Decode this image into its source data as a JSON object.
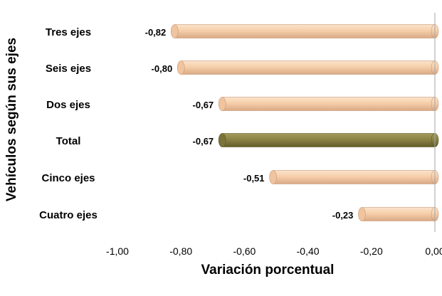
{
  "chart_data": {
    "type": "bar",
    "orientation": "horizontal",
    "title": "",
    "xlabel": "Variación porcentual",
    "ylabel": "Vehículos según sus ejes",
    "categories": [
      "Tres ejes",
      "Seis ejes",
      "Dos ejes",
      "Total",
      "Cinco ejes",
      "Cuatro ejes"
    ],
    "values": [
      -0.82,
      -0.8,
      -0.67,
      -0.67,
      -0.51,
      -0.23
    ],
    "value_labels": [
      "-0,82",
      "-0,80",
      "-0,67",
      "-0,67",
      "-0,51",
      "-0,23"
    ],
    "highlight_category": "Total",
    "xlim": [
      -1.0,
      0.0
    ],
    "x_ticks": [
      -1.0,
      -0.8,
      -0.6,
      -0.4,
      -0.2,
      0.0
    ],
    "x_tick_labels": [
      "-1,00",
      "-0,80",
      "-0,60",
      "-0,40",
      "-0,20",
      "0,00"
    ],
    "grid": false,
    "legend": "none",
    "colors": {
      "bar_fill": "#f6cfaa",
      "bar_edge": "#c99a76",
      "highlight_fill": "#8b8343",
      "highlight_edge": "#5f5a28",
      "axis_line": "#a6a6a6"
    }
  }
}
